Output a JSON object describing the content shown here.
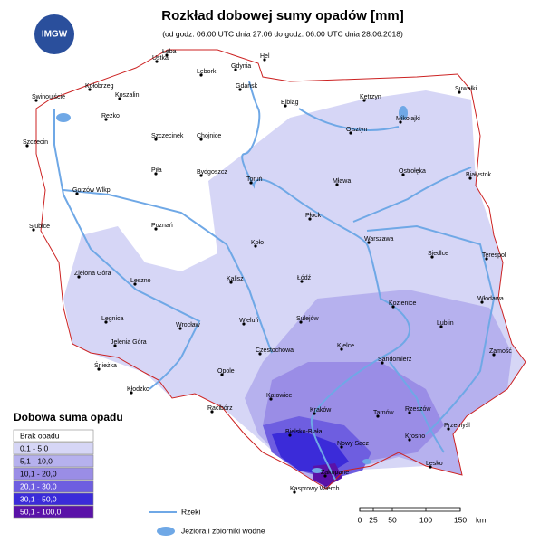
{
  "header": {
    "title": "Rozkład dobowej sumy opadów [mm]",
    "subtitle": "(od godz. 06:00 UTC dnia 27.06 do godz. 06:00 UTC dnia 28.06.2018)",
    "logo": "IMGW"
  },
  "cities": [
    "Łeba",
    "Ustka",
    "Hel",
    "Gdynia",
    "Lębork",
    "Gdańsk",
    "Kołobrzeg",
    "Koszalin",
    "Świnoujście",
    "Elbląg",
    "Kętrzyn",
    "Suwałki",
    "Rezko",
    "Chojnice",
    "Szczecinek",
    "Mikołajki",
    "Olsztyn",
    "Szczecin",
    "Piła",
    "Bydgoszcz",
    "Toruń",
    "Mława",
    "Ostrołęka",
    "Białystok",
    "Gorzów Wlkp.",
    "Płock",
    "Słubice",
    "Poznań",
    "Warszawa",
    "Siedlce",
    "Terespol",
    "Koło",
    "Zielona Góra",
    "Leszno",
    "Kalisz",
    "Łódź",
    "Kozienice",
    "Włodawa",
    "Lublin",
    "Legnica",
    "Wrocław",
    "Wieluń",
    "Sulejów",
    "Jelenia Góra",
    "Częstochowa",
    "Kielce",
    "Zamość",
    "Sandomierz",
    "Opole",
    "Śnieżka",
    "Kłodzko",
    "Katowice",
    "Kraków",
    "Racibórz",
    "Tarnów",
    "Rzeszów",
    "Przemyśl",
    "Bielsko-Biała",
    "Nowy Sącz",
    "Krosno",
    "Lesko",
    "Zakopane",
    "Kasprowy Wierch"
  ],
  "legend": {
    "title": "Dobowa suma opadu",
    "classes": [
      {
        "label": "Brak opadu",
        "color": "#ffffff"
      },
      {
        "label": "0,1 -  5,0",
        "color": "#d6d6f6"
      },
      {
        "label": "5,1 - 10,0",
        "color": "#b6b1ee"
      },
      {
        "label": "10,1 - 20,0",
        "color": "#9a8de6"
      },
      {
        "label": "20,1 - 30,0",
        "color": "#6e5ee0"
      },
      {
        "label": "30,1 - 50,0",
        "color": "#3b2bd9"
      },
      {
        "label": "50,1 - 100,0",
        "color": "#5a12a8"
      }
    ]
  },
  "water_legend": {
    "rivers": "Rzeki",
    "lakes": "Jeziora i zbiorniki wodne"
  },
  "scale": {
    "labels": [
      "0",
      "25",
      "50",
      "100",
      "150"
    ],
    "unit": "km"
  }
}
